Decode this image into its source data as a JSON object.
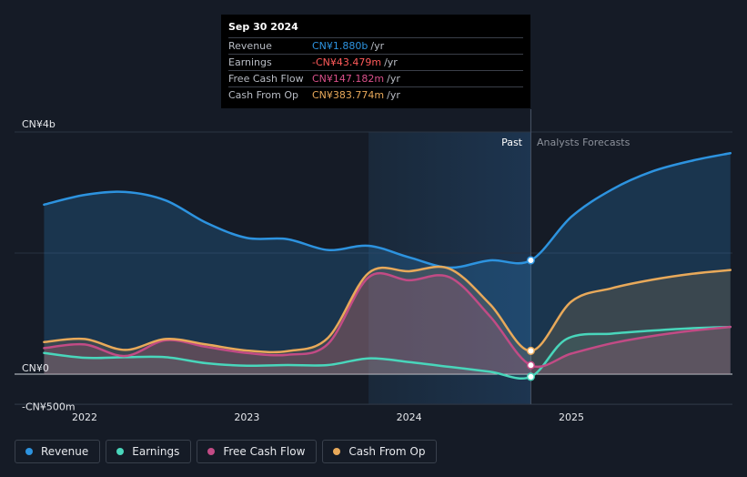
{
  "tooltip": {
    "date": "Sep 30 2024",
    "rows": [
      {
        "label": "Revenue",
        "value": "CN¥1.880b",
        "unit": "/yr",
        "color": "#2d93df"
      },
      {
        "label": "Earnings",
        "value": "-CN¥43.479m",
        "unit": "/yr",
        "color": "#ff5a5a"
      },
      {
        "label": "Free Cash Flow",
        "value": "CN¥147.182m",
        "unit": "/yr",
        "color": "#d9508a"
      },
      {
        "label": "Cash From Op",
        "value": "CN¥383.774m",
        "unit": "/yr",
        "color": "#e8a95a"
      }
    ]
  },
  "regions": {
    "past_label": "Past",
    "forecast_label": "Analysts Forecasts"
  },
  "legend": [
    {
      "label": "Revenue",
      "color": "#2d93df"
    },
    {
      "label": "Earnings",
      "color": "#49d6bb"
    },
    {
      "label": "Free Cash Flow",
      "color": "#c24b85"
    },
    {
      "label": "Cash From Op",
      "color": "#e8a95a"
    }
  ],
  "chart_data": {
    "type": "line",
    "title": "",
    "xlabel": "",
    "ylabel": "",
    "unit": "CN¥ millions",
    "ylim": [
      -500,
      4000
    ],
    "xlim": [
      2021.75,
      2025.98
    ],
    "y_ticks": [
      {
        "value": 4000,
        "label": "CN¥4b"
      },
      {
        "value": 0,
        "label": "CN¥0"
      },
      {
        "value": -500,
        "label": "-CN¥500m"
      }
    ],
    "x_ticks": [
      {
        "value": 2022,
        "label": "2022"
      },
      {
        "value": 2023,
        "label": "2023"
      },
      {
        "value": 2024,
        "label": "2024"
      },
      {
        "value": 2025,
        "label": "2025"
      }
    ],
    "highlight_start": 2023.75,
    "past_end": 2024.75,
    "series": [
      {
        "name": "Revenue",
        "color": "#2d93df",
        "x": [
          2021.75,
          2022.0,
          2022.25,
          2022.5,
          2022.75,
          2023.0,
          2023.25,
          2023.5,
          2023.75,
          2024.0,
          2024.25,
          2024.5,
          2024.75,
          2025.0,
          2025.25,
          2025.5,
          2025.75,
          2025.98
        ],
        "y": [
          2800,
          2960,
          3010,
          2870,
          2500,
          2250,
          2230,
          2050,
          2120,
          1930,
          1760,
          1880,
          1880,
          2600,
          3050,
          3350,
          3530,
          3650
        ]
      },
      {
        "name": "Earnings",
        "color": "#49d6bb",
        "x": [
          2021.75,
          2022.0,
          2022.25,
          2022.5,
          2022.75,
          2023.0,
          2023.25,
          2023.5,
          2023.75,
          2024.0,
          2024.25,
          2024.5,
          2024.75,
          2024.97,
          2025.25,
          2025.5,
          2025.75,
          2025.98
        ],
        "y": [
          350,
          270,
          280,
          280,
          180,
          140,
          150,
          150,
          260,
          200,
          120,
          40,
          -43,
          580,
          670,
          720,
          760,
          780
        ]
      },
      {
        "name": "Free Cash Flow",
        "color": "#c24b85",
        "x": [
          2021.75,
          2022.0,
          2022.25,
          2022.5,
          2022.75,
          2023.0,
          2023.25,
          2023.5,
          2023.75,
          2024.0,
          2024.25,
          2024.5,
          2024.75,
          2025.0,
          2025.25,
          2025.5,
          2025.75,
          2025.98
        ],
        "y": [
          430,
          490,
          300,
          560,
          450,
          350,
          320,
          500,
          1600,
          1550,
          1600,
          950,
          147,
          340,
          510,
          630,
          720,
          780
        ]
      },
      {
        "name": "Cash From Op",
        "color": "#e8a95a",
        "x": [
          2021.75,
          2022.0,
          2022.25,
          2022.5,
          2022.75,
          2023.0,
          2023.25,
          2023.5,
          2023.75,
          2024.0,
          2024.25,
          2024.5,
          2024.75,
          2025.0,
          2025.25,
          2025.5,
          2025.75,
          2025.98
        ],
        "y": [
          530,
          580,
          400,
          580,
          490,
          390,
          380,
          600,
          1670,
          1700,
          1740,
          1150,
          384,
          1200,
          1420,
          1560,
          1660,
          1720
        ]
      }
    ]
  }
}
